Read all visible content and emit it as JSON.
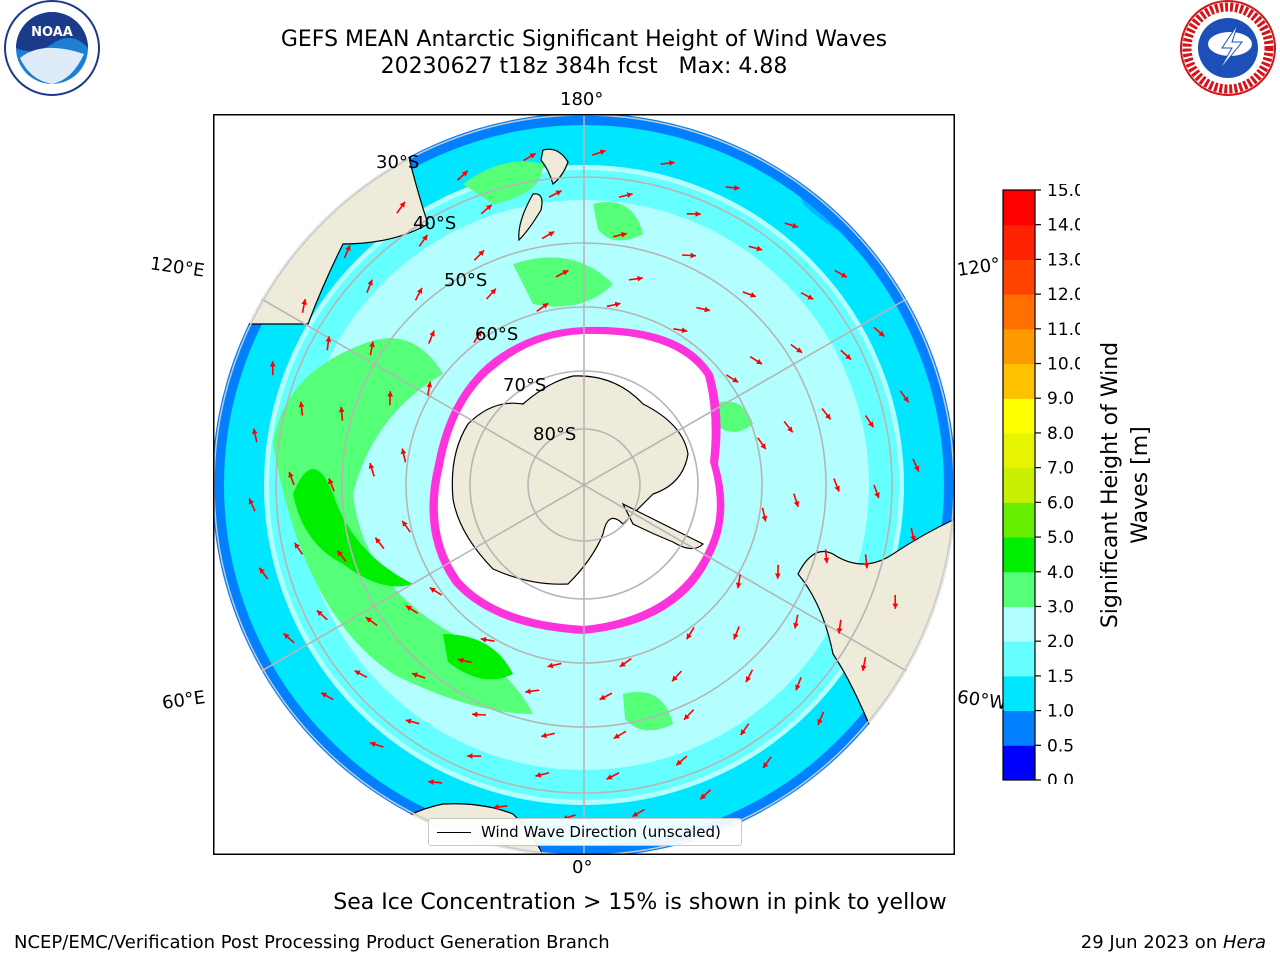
{
  "title": {
    "line1": "GEFS MEAN Antarctic Significant Height of Wind Waves",
    "line2": "20230627 t18z 384h fcst   Max: 4.88"
  },
  "map": {
    "longitude_labels": {
      "top": "180°",
      "bottom": "0°",
      "left_upper": "120°E",
      "left_lower": "60°E",
      "right_upper": "120°",
      "right_lower": "60°W"
    },
    "latitude_labels": [
      "30°S",
      "40°S",
      "50°S",
      "60°S",
      "70°S",
      "80°S"
    ],
    "legend_label": "Wind Wave Direction (unscaled)",
    "colors": {
      "land": "#efebdb",
      "ice_shelf": "#ffffff",
      "sea_ice": "#ff33dd",
      "arrow": "#ff0000",
      "graticule": "#b5b5b5"
    }
  },
  "colorbar": {
    "label_line1": "Significant Height of Wind",
    "label_line2": "Waves [m]",
    "ticks": [
      "0.0",
      "0.5",
      "1.0",
      "1.5",
      "2.0",
      "3.0",
      "4.0",
      "5.0",
      "6.0",
      "7.0",
      "8.0",
      "9.0",
      "10.0",
      "11.0",
      "12.0",
      "13.0",
      "14.0",
      "15.0"
    ],
    "colors": [
      "#0000ff",
      "#0080ff",
      "#00e6ff",
      "#66ffff",
      "#b3ffff",
      "#55ff77",
      "#00ee00",
      "#66ee00",
      "#c8f000",
      "#e6f400",
      "#ffff00",
      "#ffc000",
      "#ff9900",
      "#ff7000",
      "#ff4400",
      "#ff2200",
      "#ff0000"
    ]
  },
  "caption": "Sea Ice Concentration > 15% is shown in pink to yellow",
  "footer": {
    "left": "NCEP/EMC/Verification Post Processing Product Generation Branch",
    "right_prefix": "29 Jun 2023 on ",
    "right_host": "Hera"
  },
  "logos": {
    "noaa": "NOAA",
    "nws": "NATIONAL WEATHER SERVICE"
  }
}
